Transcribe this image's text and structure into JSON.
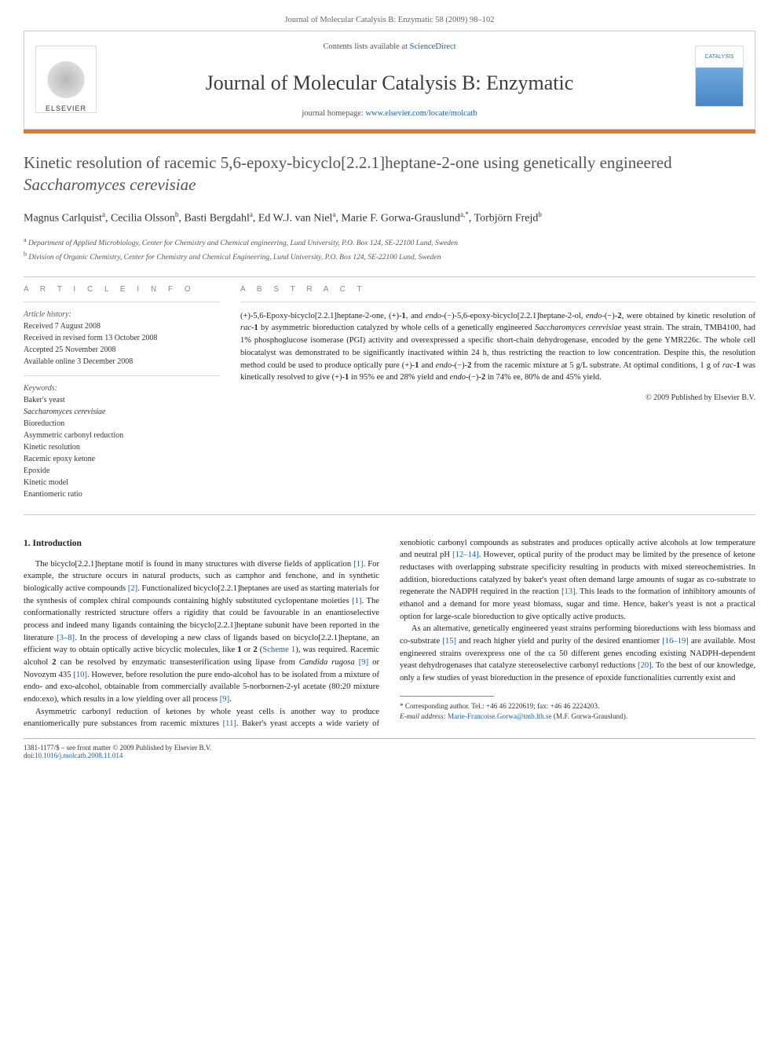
{
  "pageHeader": "Journal of Molecular Catalysis B: Enzymatic 58 (2009) 98–102",
  "banner": {
    "contentsLine_pre": "Contents lists available at ",
    "contentsLine_link": "ScienceDirect",
    "journalTitle": "Journal of Molecular Catalysis B: Enzymatic",
    "homepage_pre": "journal homepage: ",
    "homepage_link": "www.elsevier.com/locate/molcatb",
    "leftLogoWordmark": "ELSEVIER",
    "rightLogoText": "CATALYSIS"
  },
  "colors": {
    "accentBar": "#e87722",
    "link": "#1a5fb4",
    "heading": "#555555",
    "text": "#222222"
  },
  "article": {
    "title_pre": "Kinetic resolution of racemic 5,6-epoxy-bicyclo[2.2.1]heptane-2-one using genetically engineered ",
    "title_italic": "Saccharomyces cerevisiae",
    "authorsHtml": "Magnus Carlquist<sup>a</sup>, Cecilia Olsson<sup>b</sup>, Basti Bergdahl<sup>a</sup>, Ed W.J. van Niel<sup>a</sup>, Marie F. Gorwa-Grauslund<sup>a,*</sup>, Torbjörn Frejd<sup>b</sup>",
    "affiliations": [
      "a Department of Applied Microbiology, Center for Chemistry and Chemical engineering, Lund University, P.O. Box 124, SE-22100 Lund, Sweden",
      "b Division of Organic Chemistry, Center for Chemistry and Chemical Engineering, Lund University, P.O. Box 124, SE-22100 Lund, Sweden"
    ]
  },
  "info": {
    "articleInfoHeading": "a r t i c l e   i n f o",
    "abstractHeading": "a b s t r a c t",
    "historyLabel": "Article history:",
    "history": [
      "Received 7 August 2008",
      "Received in revised form 13 October 2008",
      "Accepted 25 November 2008",
      "Available online 3 December 2008"
    ],
    "keywordsLabel": "Keywords:",
    "keywords": [
      {
        "text": "Baker's yeast",
        "italic": false
      },
      {
        "text": "Saccharomyces cerevisiae",
        "italic": true
      },
      {
        "text": "Bioreduction",
        "italic": false
      },
      {
        "text": "Asymmetric carbonyl reduction",
        "italic": false
      },
      {
        "text": "Kinetic resolution",
        "italic": false
      },
      {
        "text": "Racemic epoxy ketone",
        "italic": false
      },
      {
        "text": "Epoxide",
        "italic": false
      },
      {
        "text": "Kinetic model",
        "italic": false
      },
      {
        "text": "Enantiomeric ratio",
        "italic": false
      }
    ],
    "abstractHtml": "(+)-5,6-Epoxy-bicyclo[2.2.1]heptane-2-one, (+)-<span class='bold'>1</span>, and <span class='italic'>endo</span>-(−)-5,6-epoxy-bicyclo[2.2.1]heptane-2-ol, <span class='italic'>endo</span>-(−)-<span class='bold'>2</span>, were obtained by kinetic resolution of <span class='italic'>rac</span>-<span class='bold'>1</span> by asymmetric bioreduction catalyzed by whole cells of a genetically engineered <span class='italic'>Saccharomyces cerevisiae</span> yeast strain. The strain, TMB4100, had 1% phosphoglucose isomerase (PGI) activity and overexpressed a specific short-chain dehydrogenase, encoded by the gene YMR226c. The whole cell biocatalyst was demonstrated to be significantly inactivated within 24 h, thus restricting the reaction to low concentration. Despite this, the resolution method could be used to produce optically pure (+)-<span class='bold'>1</span> and <span class='italic'>endo</span>-(−)-<span class='bold'>2</span> from the racemic mixture at 5 g/L substrate. At optimal conditions, 1 g of <span class='italic'>rac</span>-<span class='bold'>1</span> was kinetically resolved to give (+)-<span class='bold'>1</span> in 95% ee and 28% yield and <span class='italic'>endo</span>-(−)-<span class='bold'>2</span> in 74% ee, 80% de and 45% yield.",
    "copyright": "© 2009 Published by Elsevier B.V."
  },
  "body": {
    "sectionHeading": "1. Introduction",
    "paragraphsHtml": [
      "The bicyclo[2.2.1]heptane motif is found in many structures with diverse fields of application <span class='ref'>[1]</span>. For example, the structure occurs in natural products, such as camphor and fenchone, and in synthetic biologically active compounds <span class='ref'>[2]</span>. Functionalized bicyclo[2.2.1]heptanes are used as starting materials for the synthesis of complex chiral compounds containing highly substituted cyclopentane moieties <span class='ref'>[1]</span>. The conformationally restricted structure offers a rigidity that could be favourable in an enantioselective process and indeed many ligands containing the bicyclo[2.2.1]heptane subunit have been reported in the literature <span class='ref'>[3–8]</span>. In the process of developing a new class of ligands based on bicyclo[2.2.1]heptane, an efficient way to obtain optically active bicyclic molecules, like <span class='bold'>1</span> or <span class='bold'>2</span> (<span class='ref'>Scheme 1</span>), was required. Racemic alcohol <span class='bold'>2</span> can be resolved by enzymatic transesterification using lipase from <span class='italic'>Candida rugosa</span> <span class='ref'>[9]</span> or Novozym 435 <span class='ref'>[10]</span>. However, before resolution the pure endo-alcohol has to be isolated from a mixture of endo- and exo-alcohol, obtainable from commercially available 5-norbornen-2-yl acetate (80:20 mixture endo:exo), which results in a low yielding over all process <span class='ref'>[9]</span>.",
      "Asymmetric carbonyl reduction of ketones by whole yeast cells is another way to produce enantiomerically pure substances from racemic mixtures <span class='ref'>[11]</span>. Baker's yeast accepts a wide variety of xenobiotic carbonyl compounds as substrates and produces optically active alcohols at low temperature and neutral pH <span class='ref'>[12–14]</span>. However, optical purity of the product may be limited by the presence of ketone reductases with overlapping substrate specificity resulting in products with mixed stereochemistries. In addition, bioreductions catalyzed by baker's yeast often demand large amounts of sugar as co-substrate to regenerate the NADPH required in the reaction <span class='ref'>[13]</span>. This leads to the formation of inhibitory amounts of ethanol and a demand for more yeast biomass, sugar and time. Hence, baker's yeast is not a practical option for large-scale bioreduction to give optically active products.",
      "As an alternative, genetically engineered yeast strains performing bioreductions with less biomass and co-substrate <span class='ref'>[15]</span> and reach higher yield and purity of the desired enantiomer <span class='ref'>[16–19]</span> are available. Most engineered strains overexpress one of the ca 50 different genes encoding existing NADPH-dependent yeast dehydrogenases that catalyze stereoselective carbonyl reductions <span class='ref'>[20]</span>. To the best of our knowledge, only a few studies of yeast bioreduction in the presence of epoxide functionalities currently exist and"
    ]
  },
  "footnote": {
    "correspLabel": "* Corresponding author. Tel.: +46 46 2220619; fax: +46 46 2224203.",
    "emailLabel": "E-mail address: ",
    "email": "Marie-Francoise.Gorwa@tmb.lth.se",
    "emailTrail": " (M.F. Gorwa-Grauslund)."
  },
  "bottom": {
    "left_line1": "1381-1177/$ – see front matter © 2009 Published by Elsevier B.V.",
    "left_line2_pre": "doi:",
    "left_line2_link": "10.1016/j.molcatb.2008.11.014"
  }
}
